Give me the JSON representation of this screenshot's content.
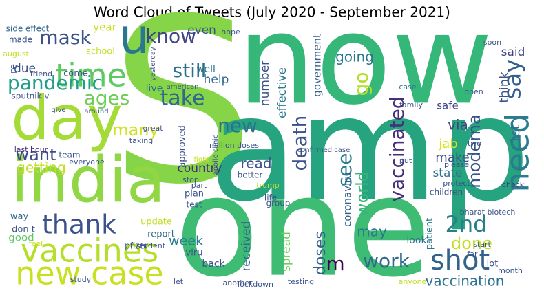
{
  "chart_data": {
    "type": "wordcloud",
    "title": "Word Cloud of Tweets (July 2020 - September 2021)",
    "words": [
      "now",
      "S",
      "amp",
      "one",
      "day",
      "india",
      "vaccines",
      "new case",
      "time",
      "u",
      "pandemic",
      "ages",
      "mask",
      "know",
      "still",
      "take",
      "say",
      "need",
      "shot",
      "vaccinated",
      "death",
      "see",
      "go",
      "new",
      "many",
      "want",
      "getting",
      "thank",
      "2nd",
      "done",
      "moderna",
      "1st",
      "think",
      "said",
      "via",
      "make",
      "jab",
      "state",
      "world",
      "coronaviru",
      "work",
      "vaccination",
      "country",
      "week",
      "read",
      "doses",
      "m",
      "may",
      "spread",
      "received",
      "number",
      "effective",
      "government",
      "going",
      "safe",
      "even",
      "year",
      "help",
      "well",
      "due",
      "school",
      "sputnik v",
      "side effect",
      "made",
      "last hour",
      "way",
      "don t",
      "good",
      "update",
      "report",
      "approved",
      "back",
      "viru",
      "look",
      "patient",
      "lot",
      "hope",
      "soon",
      "open",
      "case",
      "children",
      "check",
      "family",
      "plan",
      "test",
      "live",
      "student",
      "trump",
      "group",
      "life",
      "better",
      "team",
      "come",
      "re",
      "august",
      "friend",
      "everyone",
      "pfizer",
      "feel",
      "study",
      "let",
      "another",
      "lockdown",
      "testing",
      "anyone",
      "month",
      "far",
      "start",
      "put",
      "two",
      "please",
      "protect",
      "bharat biotech",
      "million doses",
      "apollo clinic",
      "confirmed case",
      "yesterday",
      "american",
      "give",
      "around",
      "taking",
      "great",
      "stop",
      "part",
      "fight"
    ]
  }
}
